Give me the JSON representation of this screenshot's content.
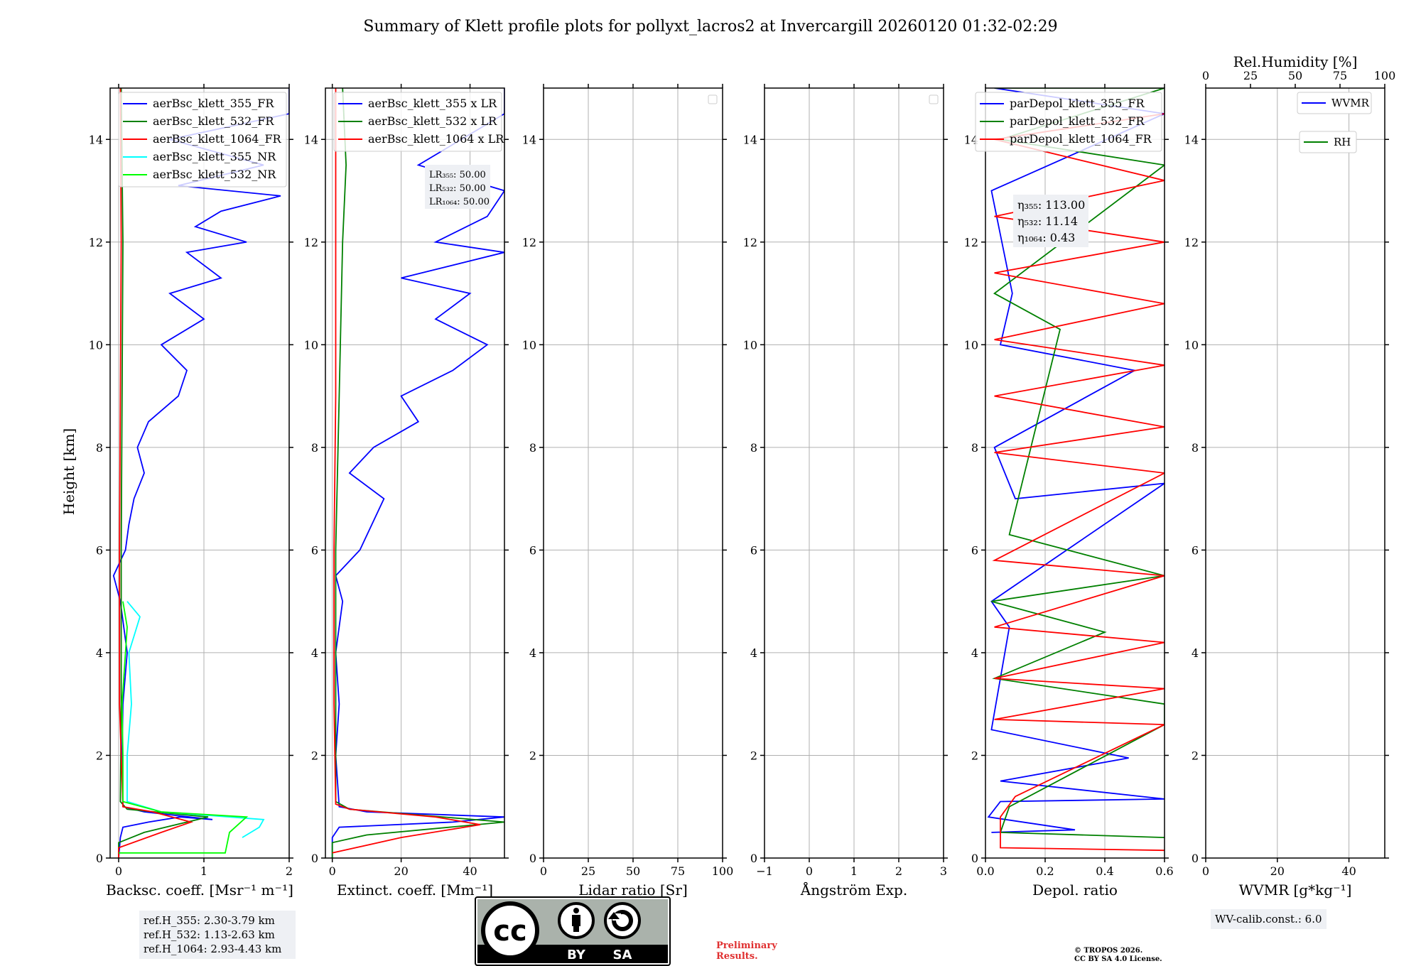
{
  "title": "Summary of Klett profile plots for pollyxt_lacros2 at Invercargill 20260120 01:32-02:29",
  "ylabel": "Height [km]",
  "chart_data": [
    {
      "type": "line",
      "id": "backscatter",
      "xlabel": "Backsc. coeff. [Msr⁻¹ m⁻¹]",
      "xlim": [
        -0.1,
        2.0
      ],
      "ylim": [
        0,
        15
      ],
      "xticks": [
        0,
        1,
        2
      ],
      "yticks": [
        0,
        2,
        4,
        6,
        8,
        10,
        12,
        14
      ],
      "grid": true,
      "legend_position": "top-right",
      "series": [
        {
          "name": "aerBsc_klett_355_FR",
          "color": "#0000ff",
          "x": [
            0,
            0.02,
            0.05,
            0.35,
            0.72,
            1.1,
            0.3,
            0.05,
            0.04,
            0.05,
            0.1,
            0.02,
            -0.06,
            0.08,
            0.12,
            0.18,
            0.3,
            0.22,
            0.35,
            0.7,
            0.8,
            0.5,
            1.0,
            0.6,
            1.2,
            0.8,
            1.5,
            0.9,
            1.2,
            1.9,
            0.7,
            1.7,
            0.6,
            2.0,
            2.0
          ],
          "y": [
            0,
            0.4,
            0.6,
            0.7,
            0.8,
            0.75,
            0.9,
            1.0,
            2.0,
            3.0,
            4.0,
            5.0,
            5.5,
            6.0,
            6.5,
            7.0,
            7.5,
            8.0,
            8.5,
            9.0,
            9.5,
            10.0,
            10.5,
            11.0,
            11.3,
            11.8,
            12.0,
            12.3,
            12.6,
            12.9,
            13.1,
            13.5,
            14.0,
            14.5,
            15.0
          ]
        },
        {
          "name": "aerBsc_klett_532_FR",
          "color": "#008000",
          "x": [
            0,
            0,
            0.3,
            1.05,
            0.1,
            0.02,
            0.03,
            0.03,
            0.04,
            0.05,
            0.03
          ],
          "y": [
            0,
            0.3,
            0.5,
            0.8,
            0.95,
            1.1,
            3.0,
            6.0,
            9.0,
            12.0,
            15.0
          ]
        },
        {
          "name": "aerBsc_klett_1064_FR",
          "color": "#ff0000",
          "x": [
            0,
            0,
            0.5,
            0.85,
            0.4,
            0.05,
            0.01,
            0.01,
            0.02,
            0.03,
            0.02
          ],
          "y": [
            0,
            0.2,
            0.5,
            0.7,
            0.9,
            1.0,
            3.0,
            6.0,
            9.0,
            12.0,
            15.0
          ]
        },
        {
          "name": "aerBsc_klett_355_NR",
          "color": "#00ffff",
          "x": [
            1.45,
            1.65,
            1.7,
            0.5,
            0.1,
            0.1,
            0.15,
            0.12,
            0.25,
            0.1
          ],
          "y": [
            0.4,
            0.6,
            0.75,
            0.9,
            1.1,
            2.0,
            3.0,
            4.0,
            4.7,
            5.0
          ]
        },
        {
          "name": "aerBsc_klett_532_NR",
          "color": "#00ff00",
          "x": [
            0,
            1.25,
            1.3,
            1.5,
            0.5,
            0.05,
            0.05,
            0.04,
            0.1,
            0.05
          ],
          "y": [
            0.1,
            0.1,
            0.5,
            0.8,
            0.9,
            1.1,
            2.0,
            3.0,
            4.5,
            5.0
          ]
        }
      ],
      "notes": [
        "ref.H_355: 2.30-3.79 km",
        "ref.H_532: 1.13-2.63 km",
        "ref.H_1064: 2.93-4.43 km"
      ]
    },
    {
      "type": "line",
      "id": "extinction",
      "xlabel": "Extinct. coeff. [Mm⁻¹]",
      "xlim": [
        -2,
        50
      ],
      "ylim": [
        0,
        15
      ],
      "xticks": [
        0,
        20,
        40
      ],
      "yticks": [
        0,
        2,
        4,
        6,
        8,
        10,
        12,
        14
      ],
      "grid": true,
      "legend_position": "top-right",
      "series": [
        {
          "name": "aerBsc_klett_355 x LR",
          "color": "#0000ff",
          "x": [
            0,
            0,
            2,
            35,
            50,
            10,
            2,
            1,
            2,
            1,
            3,
            1,
            8,
            15,
            5,
            12,
            25,
            20,
            35,
            45,
            30,
            40,
            20,
            50,
            30,
            45,
            50,
            25,
            50,
            50
          ],
          "y": [
            0,
            0.4,
            0.6,
            0.7,
            0.8,
            0.9,
            1.0,
            2.0,
            3.0,
            4.0,
            5.0,
            5.5,
            6.0,
            7.0,
            7.5,
            8.0,
            8.5,
            9.0,
            9.5,
            10.0,
            10.5,
            11.0,
            11.3,
            11.8,
            12.0,
            12.5,
            13.0,
            13.5,
            14.5,
            15.0
          ]
        },
        {
          "name": "aerBsc_klett_532 x LR",
          "color": "#008000",
          "x": [
            0,
            0,
            10,
            50,
            5,
            1,
            1,
            1,
            2,
            3,
            4,
            3
          ],
          "y": [
            0,
            0.3,
            0.45,
            0.7,
            0.95,
            1.1,
            3.0,
            6.0,
            9.0,
            12.0,
            13.5,
            15.0
          ]
        },
        {
          "name": "aerBsc_klett_1064 x LR",
          "color": "#ff0000",
          "x": [
            0,
            20,
            43,
            30,
            5,
            1,
            0.5,
            0.5,
            1,
            1,
            1
          ],
          "y": [
            0.1,
            0.4,
            0.65,
            0.8,
            0.95,
            1.05,
            3.0,
            6.0,
            9.0,
            12.0,
            15.0
          ]
        }
      ],
      "lidar_ratios": [
        "LR₃₅₅: 50.00",
        "LR₅₃₂: 50.00",
        "LR₁₀₆₄: 50.00"
      ]
    },
    {
      "type": "line",
      "id": "lidar-ratio",
      "xlabel": "Lidar ratio [Sr]",
      "xlim": [
        0,
        100
      ],
      "ylim": [
        0,
        15
      ],
      "xticks": [
        0,
        25,
        50,
        75,
        100
      ],
      "yticks": [
        0,
        2,
        4,
        6,
        8,
        10,
        12,
        14
      ],
      "grid": true,
      "series": []
    },
    {
      "type": "line",
      "id": "angstrom",
      "xlabel": "Ångström Exp.",
      "xlim": [
        -1,
        3
      ],
      "ylim": [
        0,
        15
      ],
      "xticks": [
        -1,
        0,
        1,
        2,
        3
      ],
      "yticks": [
        0,
        2,
        4,
        6,
        8,
        10,
        12,
        14
      ],
      "grid": true,
      "series": []
    },
    {
      "type": "line",
      "id": "depol",
      "xlabel": "Depol. ratio",
      "xlim": [
        0,
        0.6
      ],
      "ylim": [
        0,
        15
      ],
      "xticks": [
        0.0,
        0.2,
        0.4,
        0.6
      ],
      "yticks": [
        0,
        2,
        4,
        6,
        8,
        10,
        12,
        14
      ],
      "grid": true,
      "legend_position": "top-right",
      "series": [
        {
          "name": "parDepol_klett_355_FR",
          "color": "#0000ff",
          "x": [
            0.02,
            0.3,
            0.01,
            0.05,
            0.6,
            0.05,
            0.48,
            0.02,
            0.08,
            0.02,
            0.6,
            0.1,
            0.03,
            0.5,
            0.05,
            0.09,
            0.02,
            0.6,
            0.03
          ],
          "y": [
            0.5,
            0.55,
            0.8,
            1.1,
            1.15,
            1.5,
            1.95,
            2.5,
            4.5,
            5.0,
            7.3,
            7.0,
            8.0,
            9.5,
            10.0,
            11.0,
            13.0,
            14.5,
            15.0
          ]
        },
        {
          "name": "parDepol_klett_532_FR",
          "color": "#008000",
          "x": [
            0.6,
            0.05,
            0.08,
            0.6,
            0.6,
            0.03,
            0.4,
            0.02,
            0.6,
            0.08,
            0.25,
            0.03,
            0.6,
            0.05,
            0.6,
            0.03
          ],
          "y": [
            0.4,
            0.5,
            1.0,
            2.6,
            3.0,
            3.5,
            4.4,
            5.0,
            5.5,
            6.3,
            10.3,
            11.0,
            13.5,
            14.0,
            15.0,
            15.0
          ]
        },
        {
          "name": "parDepol_klett_1064_FR",
          "color": "#ff0000",
          "x": [
            0.6,
            0.05,
            0.05,
            0.1,
            0.6,
            0.03,
            0.6,
            0.03,
            0.6,
            0.03,
            0.6,
            0.03,
            0.6,
            0.03,
            0.6,
            0.03,
            0.6,
            0.03,
            0.6,
            0.03,
            0.6,
            0.03,
            0.6,
            0.03,
            0.6
          ],
          "y": [
            0.15,
            0.2,
            0.8,
            1.2,
            2.6,
            2.7,
            3.3,
            3.5,
            4.2,
            4.5,
            5.5,
            5.8,
            7.5,
            7.9,
            8.4,
            9.0,
            9.6,
            10.1,
            10.8,
            11.4,
            12.0,
            12.5,
            13.2,
            14.0,
            14.5
          ]
        }
      ],
      "eta": [
        "η₃₅₅: 113.00",
        "η₅₃₂: 11.14",
        "η₁₀₆₄: 0.43"
      ]
    },
    {
      "type": "line",
      "id": "wvmr",
      "xlabel": "WVMR [g*kg⁻¹]",
      "xlim": [
        0,
        50
      ],
      "ylim": [
        0,
        15
      ],
      "xticks": [
        0,
        20,
        40
      ],
      "yticks": [
        0,
        2,
        4,
        6,
        8,
        10,
        12,
        14
      ],
      "grid": true,
      "top_axis_label": "Rel.Humidity [%]",
      "top_xlim": [
        0,
        100
      ],
      "top_xticks": [
        0,
        25,
        50,
        75,
        100
      ],
      "series": [
        {
          "name": "WVMR",
          "color": "#0000ff",
          "x": [],
          "y": []
        },
        {
          "name": "RH",
          "color": "#008000",
          "x": [],
          "y": []
        }
      ],
      "note": "WV-calib.const.: 6.0"
    }
  ],
  "footer": {
    "license_badge": {
      "cc": "cc",
      "by": "BY",
      "sa": "SA"
    },
    "preliminary": [
      "Preliminary",
      "Results."
    ],
    "copyright": [
      "© TROPOS 2026.",
      "CC BY SA 4.0 License."
    ]
  }
}
